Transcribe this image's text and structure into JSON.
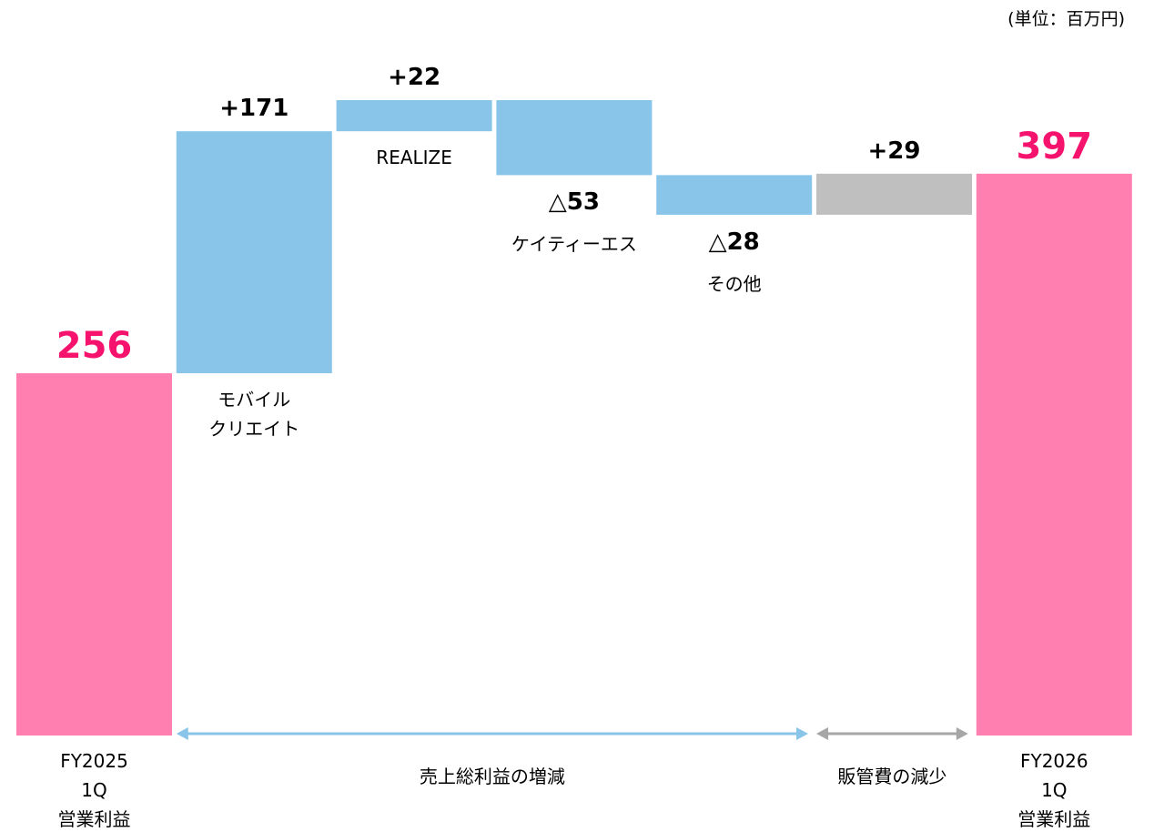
{
  "chart_data": {
    "type": "waterfall",
    "unit_note": "(単位：百万円)",
    "categories": [
      "FY2025\n1Q\n営業利益",
      "モバイル\nクリエイト",
      "REALIZE",
      "ケイティーエス",
      "その他",
      null,
      "FY2026\n1Q\n営業利益"
    ],
    "values": [
      256,
      171,
      22,
      -53,
      -28,
      29,
      397
    ],
    "value_labels": [
      "256",
      "+171",
      "+22",
      "△53",
      "△28",
      "+29",
      "397"
    ],
    "colors": [
      "#ff80b0",
      "#88c5e8",
      "#88c5e8",
      "#88c5e8",
      "#88c5e8",
      "#bfbfbf",
      "#ff80b0"
    ],
    "total_label_color": "#f5136e",
    "groups": [
      {
        "label": "売上総利益の増減",
        "from": 1,
        "to": 4,
        "color": "#88c5e8"
      },
      {
        "label": "販管費の減少",
        "from": 5,
        "to": 5,
        "color": "#a6a6a6"
      }
    ]
  }
}
